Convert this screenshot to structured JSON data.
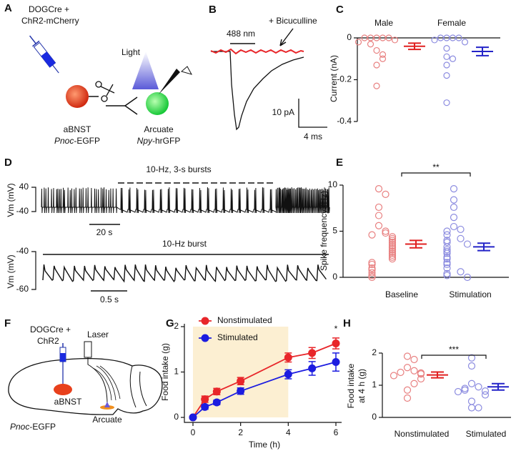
{
  "panel_labels": [
    "A",
    "B",
    "C",
    "D",
    "E",
    "F",
    "G",
    "H"
  ],
  "schematic_a": {
    "injection": [
      "DOGCre +",
      "ChR2-mCherry"
    ],
    "light": "Light",
    "source": {
      "region": "aBNST",
      "gene": "Pnoc",
      "reporter": "-EGFP"
    },
    "target": {
      "region": "Arcuate",
      "gene": "Npy",
      "reporter": "-hrGFP"
    }
  },
  "trace_b": {
    "stimulus": "488 nm",
    "drug": "+ Bicuculline",
    "scale_y": "10 pA",
    "scale_x": "4 ms"
  },
  "trace_d": {
    "title_top": "10-Hz, 3-s bursts",
    "ylabel": "Vm (mV)",
    "yticks_top": [
      40,
      -40
    ],
    "scale_top": "20 s",
    "title_bottom": "10-Hz burst",
    "yticks_bottom": [
      -40,
      -60
    ],
    "scale_bottom": "0.5 s"
  },
  "schematic_f": {
    "injection": [
      "DOGCre +",
      "ChR2"
    ],
    "laser": "Laser",
    "source": "aBNST",
    "target": "Arcuate",
    "line": {
      "gene": "Pnoc",
      "reporter": "-EGFP"
    }
  },
  "chart_data": [
    {
      "type": "strip",
      "ylabel": "Current (nA)",
      "categories": [
        "Male",
        "Female"
      ],
      "points": [
        [
          0,
          0,
          0,
          0,
          0,
          -0.01,
          -0.02,
          -0.03,
          -0.06,
          -0.08,
          -0.1,
          -0.13,
          -0.23
        ],
        [
          0,
          0,
          0,
          0,
          -0.01,
          -0.02,
          -0.05,
          -0.09,
          -0.1,
          -0.13,
          -0.18,
          -0.31
        ]
      ],
      "means": [
        -0.04,
        -0.065
      ],
      "sem": [
        0.015,
        0.02
      ],
      "point_colors": [
        "#e88080",
        "#8c8ce0"
      ],
      "mean_colors": [
        "#e02020",
        "#2424c8"
      ],
      "ylim": [
        -0.4,
        0
      ],
      "yticks": [
        0,
        -0.2,
        -0.4
      ]
    },
    {
      "type": "strip",
      "ylabel": "Spike frequency (Hz)",
      "categories": [
        "Baseline",
        "Stimulation"
      ],
      "points": [
        [
          9.6,
          9.0,
          7.6,
          6.7,
          5.6,
          5.0,
          4.8,
          4.6,
          4.4,
          4.2,
          4.0,
          3.8,
          3.6,
          3.4,
          3.2,
          3.0,
          2.8,
          2.6,
          2.4,
          2.2,
          2.0,
          1.6,
          1.4,
          1.0,
          0.8,
          0.5,
          0.2,
          0
        ],
        [
          9.6,
          8.4,
          7.6,
          6.5,
          5.5,
          5.2,
          5.0,
          4.6,
          4.2,
          4.0,
          3.8,
          3.6,
          3.3,
          3.0,
          2.8,
          2.6,
          2.2,
          2.0,
          1.6,
          1.4,
          1.0,
          0.6,
          0.4,
          0.2,
          0
        ]
      ],
      "means": [
        3.6,
        3.3
      ],
      "sem": [
        0.4,
        0.4
      ],
      "point_colors": [
        "#e88080",
        "#8c8ce0"
      ],
      "mean_colors": [
        "#e02020",
        "#2424c8"
      ],
      "ylim": [
        0,
        10
      ],
      "yticks": [
        0,
        5,
        10
      ],
      "annotation": "**"
    },
    {
      "type": "line",
      "xlabel": "Time (h)",
      "ylabel": "Food intake (g)",
      "x": [
        0,
        0.5,
        1,
        2,
        4,
        5,
        6
      ],
      "series": [
        {
          "name": "Nonstimulated",
          "color": "#e8262a",
          "values": [
            0,
            0.4,
            0.57,
            0.8,
            1.32,
            1.42,
            1.63
          ],
          "errors": [
            0,
            0.07,
            0.07,
            0.08,
            0.1,
            0.12,
            0.12
          ]
        },
        {
          "name": "Stimulated",
          "color": "#1c1ce0",
          "values": [
            0,
            0.23,
            0.33,
            0.58,
            0.95,
            1.08,
            1.22
          ],
          "errors": [
            0,
            0.05,
            0.05,
            0.07,
            0.1,
            0.15,
            0.2
          ]
        }
      ],
      "xlim": [
        0,
        6
      ],
      "ylim": [
        0,
        2
      ],
      "xticks": [
        0,
        2,
        4,
        6
      ],
      "yticks": [
        0,
        1,
        2
      ],
      "shaded": [
        0,
        4
      ],
      "shade_color": "#fcefd2",
      "annotation": "*"
    },
    {
      "type": "strip",
      "ylabel": [
        "Food intake",
        "at 4 h (g)"
      ],
      "categories": [
        "Nonstimulated",
        "Stimulated"
      ],
      "points": [
        [
          1.9,
          1.8,
          1.55,
          1.45,
          1.4,
          1.38,
          1.35,
          1.3,
          1.2,
          1.05,
          0.85,
          0.6
        ],
        [
          1.85,
          1.6,
          1.05,
          0.95,
          0.9,
          0.85,
          0.82,
          0.8,
          0.7,
          0.5,
          0.3,
          0.3
        ]
      ],
      "means": [
        1.32,
        0.95
      ],
      "sem": [
        0.09,
        0.1
      ],
      "point_colors": [
        "#e88080",
        "#8c8ce0"
      ],
      "mean_colors": [
        "#e02020",
        "#2424c8"
      ],
      "ylim": [
        0,
        2
      ],
      "yticks": [
        0,
        1,
        2
      ],
      "annotation": "***"
    }
  ]
}
